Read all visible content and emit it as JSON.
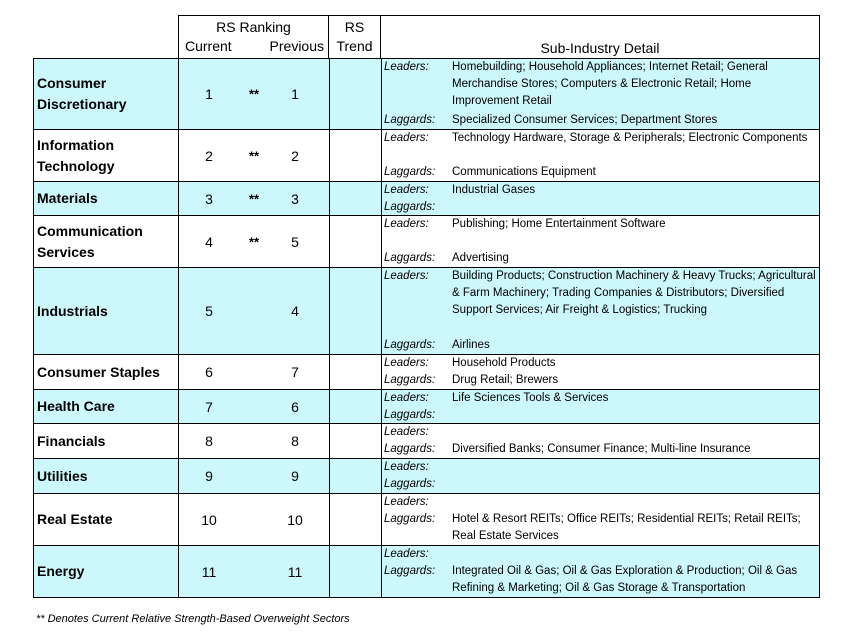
{
  "header": {
    "rank_title": "RS Ranking",
    "current_label": "Current",
    "previous_label": "Previous",
    "trend_line1": "RS",
    "trend_line2": "Trend",
    "detail_title": "Sub-Industry Detail"
  },
  "labels": {
    "leaders": "Leaders:",
    "laggards": "Laggards:"
  },
  "rows": [
    {
      "sector": "Consumer Discretionary",
      "current": "1",
      "stars": "**",
      "previous": "1",
      "leaders": "Homebuilding; Household Appliances; Internet Retail; General Merchandise Stores; Computers & Electronic Retail; Home Improvement Retail",
      "laggards": "Specialized Consumer Services; Department Stores"
    },
    {
      "sector": "Information Technology",
      "current": "2",
      "stars": "**",
      "previous": "2",
      "leaders": "Technology Hardware, Storage & Peripherals; Electronic Components",
      "laggards": "Communications Equipment"
    },
    {
      "sector": "Materials",
      "current": "3",
      "stars": "**",
      "previous": "3",
      "leaders": "Industrial Gases",
      "laggards": ""
    },
    {
      "sector": "Communication Services",
      "current": "4",
      "stars": "**",
      "previous": "5",
      "leaders": "Publishing; Home Entertainment Software",
      "laggards": "Advertising"
    },
    {
      "sector": "Industrials",
      "current": "5",
      "stars": "",
      "previous": "4",
      "leaders": "Building Products; Construction Machinery & Heavy Trucks; Agricultural & Farm Machinery; Trading Companies & Distributors; Diversified Support Services; Air Freight & Logistics; Trucking",
      "laggards": "Airlines"
    },
    {
      "sector": "Consumer Staples",
      "current": "6",
      "stars": "",
      "previous": "7",
      "leaders": "Household Products",
      "laggards": "Drug Retail; Brewers"
    },
    {
      "sector": "Health Care",
      "current": "7",
      "stars": "",
      "previous": "6",
      "leaders": "Life Sciences Tools & Services",
      "laggards": ""
    },
    {
      "sector": "Financials",
      "current": "8",
      "stars": "",
      "previous": "8",
      "leaders": "",
      "laggards": "Diversified Banks; Consumer Finance; Multi-line Insurance"
    },
    {
      "sector": "Utilities",
      "current": "9",
      "stars": "",
      "previous": "9",
      "leaders": "",
      "laggards": ""
    },
    {
      "sector": "Real Estate",
      "current": "10",
      "stars": "",
      "previous": "10",
      "leaders": "",
      "laggards": "Hotel & Resort REITs; Office REITs; Residential REITs; Retail REITs; Real Estate Services"
    },
    {
      "sector": "Energy",
      "current": "11",
      "stars": "",
      "previous": "11",
      "leaders": "",
      "laggards": "Integrated Oil & Gas; Oil & Gas Exploration & Production; Oil & Gas Refining & Marketing; Oil & Gas Storage & Transportation"
    }
  ],
  "footnote": "** Denotes Current Relative Strength-Based Overweight Sectors",
  "colors": {
    "alt_row": "#ccf7fb",
    "border": "#000000"
  }
}
